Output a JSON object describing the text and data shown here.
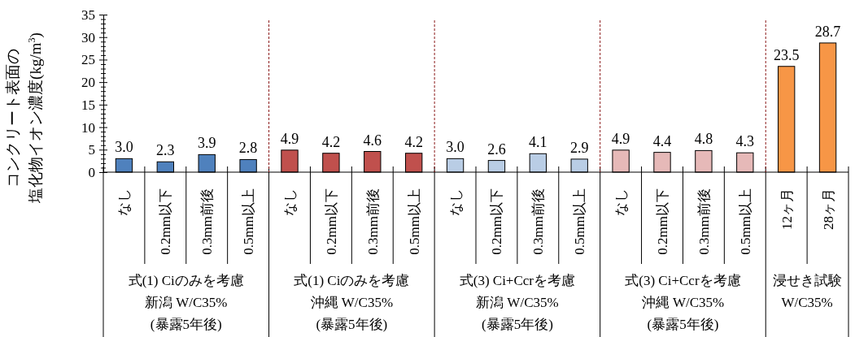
{
  "chart_data": {
    "type": "bar",
    "ylabel": "コンクリート表面の塩化物イオン濃度(kg/m$^{3}$)",
    "categories": [
      "なし",
      "0.2mm以下",
      "0.3mm前後",
      "0.5mm以上",
      "なし",
      "0.2mm以下",
      "0.3mm前後",
      "0.5mm以上",
      "なし",
      "0.2mm以下",
      "0.3mm前後",
      "0.5mm以上",
      "なし",
      "0.2mm以下",
      "0.3mm前後",
      "0.5mm以上",
      "12ヶ月",
      "28ヶ月"
    ],
    "values": [
      3.0,
      2.3,
      3.9,
      2.8,
      4.9,
      4.2,
      4.6,
      4.2,
      3.0,
      2.6,
      4.1,
      2.9,
      4.9,
      4.4,
      4.8,
      4.3,
      23.5,
      28.7
    ],
    "colors": [
      "#4f81bd",
      "#4f81bd",
      "#4f81bd",
      "#4f81bd",
      "#c0504d",
      "#c0504d",
      "#c0504d",
      "#c0504d",
      "#b9cde5",
      "#b9cde5",
      "#b9cde5",
      "#b9cde5",
      "#e6b9b8",
      "#e6b9b8",
      "#e6b9b8",
      "#e6b9b8",
      "#f79646",
      "#f79646"
    ],
    "value_labels": [
      "3.0",
      "2.3",
      "3.9",
      "2.8",
      "4.9",
      "4.2",
      "4.6",
      "4.2",
      "3.0",
      "2.6",
      "4.1",
      "2.9",
      "4.9",
      "4.4",
      "4.8",
      "4.3",
      "23.5",
      "28.7"
    ],
    "ylim": [
      0,
      35
    ],
    "yticks": [
      0,
      {
        "value": 1,
        "label": null
      },
      {
        "value": 2,
        "label": null
      },
      {
        "value": 3,
        "label": null
      },
      {
        "value": 4,
        "label": null
      },
      5,
      {
        "value": 6,
        "label": null
      },
      {
        "value": 7,
        "label": null
      },
      {
        "value": 8,
        "label": null
      },
      {
        "value": 9,
        "label": null
      },
      10,
      {
        "value": 11,
        "label": null
      },
      {
        "value": 12,
        "label": null
      },
      {
        "value": 13,
        "label": null
      },
      {
        "value": 14,
        "label": null
      },
      15,
      {
        "value": 16,
        "label": null
      },
      {
        "value": 17,
        "label": null
      },
      {
        "value": 18,
        "label": null
      },
      {
        "value": 19,
        "label": null
      },
      20,
      {
        "value": 21,
        "label": null
      },
      {
        "value": 22,
        "label": null
      },
      {
        "value": 23,
        "label": null
      },
      {
        "value": 24,
        "label": null
      },
      25,
      {
        "value": 26,
        "label": null
      },
      {
        "value": 27,
        "label": null
      },
      {
        "value": 28,
        "label": null
      },
      {
        "value": 29,
        "label": null
      },
      30,
      {
        "value": 31,
        "label": null
      },
      {
        "value": 32,
        "label": null
      },
      {
        "value": 33,
        "label": null
      },
      {
        "value": 34,
        "label": null
      },
      35
    ],
    "grid": false,
    "annotations": [
      "式(1) Ciのみを考慮",
      "新潟 W/C35%",
      "(暴露5年後)",
      "式(1) Ciのみを考慮",
      "沖縄 W/C35%",
      "(暴露5年後)",
      "式(3) Ci+Ccrを考慮",
      "新潟 W/C35%",
      "(暴露5年後)",
      "式(3) Ci+Ccrを考慮",
      "沖縄 W/C35%",
      "(暴露5年後)",
      "浸せき試験",
      "W/C35%"
    ]
  }
}
